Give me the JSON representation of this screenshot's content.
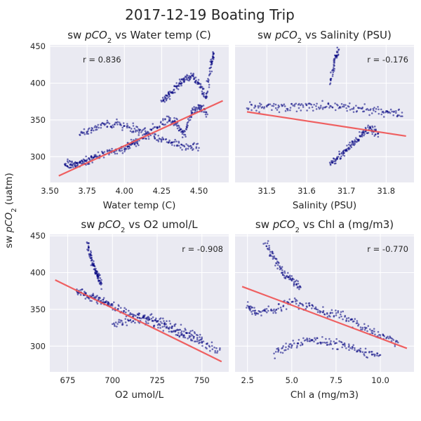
{
  "suptitle": "2017-12-19 Boating Trip",
  "ylabel_prefix": "sw ",
  "ylabel_var": "pCO",
  "ylabel_sub": "2",
  "ylabel_unit": " (uatm)",
  "chart_data": [
    {
      "type": "scatter",
      "title_prefix": "sw ",
      "title_var": "pCO",
      "title_sub": "2",
      "title_suffix": " vs Water temp (C)",
      "xlabel": "Water temp (C)",
      "xlim": [
        3.5,
        4.7
      ],
      "ylim": [
        265,
        452
      ],
      "xticks": [
        3.5,
        3.75,
        4.0,
        4.25,
        4.5
      ],
      "xtick_labels": [
        "3.50",
        "3.75",
        "4.00",
        "4.25",
        "4.50"
      ],
      "yticks": [
        300,
        350,
        400,
        450
      ],
      "ytick_labels": [
        "300",
        "350",
        "400",
        "450"
      ],
      "r_label": "r = 0.836",
      "r_position": "top-left",
      "fit_line": {
        "x": [
          3.56,
          4.66
        ],
        "y": [
          274,
          376
        ]
      },
      "point_color": "#000080",
      "fit_color": "#f05050",
      "series": [
        {
          "x": [
            3.6,
            3.65,
            3.7,
            3.75,
            3.8,
            3.9,
            4.0,
            4.05,
            4.1,
            4.2,
            4.3,
            4.35,
            4.4,
            4.45,
            4.5,
            4.55
          ],
          "y": [
            290,
            288,
            292,
            296,
            300,
            305,
            310,
            318,
            322,
            340,
            350,
            345,
            330,
            360,
            370,
            360
          ]
        },
        {
          "x": [
            3.7,
            3.8,
            3.9,
            4.0,
            4.1,
            4.2,
            4.3,
            4.4,
            4.5
          ],
          "y": [
            330,
            340,
            345,
            342,
            335,
            328,
            320,
            315,
            312
          ]
        },
        {
          "x": [
            4.25,
            4.3,
            4.35,
            4.4,
            4.45,
            4.5,
            4.55,
            4.58,
            4.6
          ],
          "y": [
            375,
            385,
            395,
            405,
            410,
            400,
            380,
            425,
            440
          ]
        }
      ]
    },
    {
      "type": "scatter",
      "title_prefix": "sw ",
      "title_var": "pCO",
      "title_sub": "2",
      "title_suffix": " vs Salinity (PSU)",
      "xlabel": "Salinity (PSU)",
      "xlim": [
        31.42,
        31.87
      ],
      "ylim": [
        265,
        452
      ],
      "xticks": [
        31.5,
        31.6,
        31.7,
        31.8
      ],
      "xtick_labels": [
        "31.5",
        "31.6",
        "31.7",
        "31.8"
      ],
      "yticks": [
        300,
        350,
        400,
        450
      ],
      "ytick_labels": [
        "",
        "",
        "",
        ""
      ],
      "r_label": "r = -0.176",
      "r_position": "top-right",
      "fit_line": {
        "x": [
          31.45,
          31.85
        ],
        "y": [
          361,
          328
        ]
      },
      "point_color": "#000080",
      "fit_color": "#f05050",
      "series": [
        {
          "x": [
            31.45,
            31.5,
            31.55,
            31.6,
            31.65,
            31.7,
            31.75,
            31.8,
            31.84
          ],
          "y": [
            366,
            368,
            365,
            370,
            368,
            366,
            364,
            362,
            360
          ]
        },
        {
          "x": [
            31.66,
            31.68,
            31.7,
            31.72,
            31.74,
            31.76,
            31.78
          ],
          "y": [
            290,
            300,
            310,
            320,
            330,
            340,
            332
          ]
        },
        {
          "x": [
            31.66,
            31.67,
            31.68
          ],
          "y": [
            400,
            430,
            445
          ]
        }
      ]
    },
    {
      "type": "scatter",
      "title_prefix": "sw ",
      "title_var": "pCO",
      "title_sub": "2",
      "title_suffix": " vs O2 umol/L",
      "xlabel": "O2 umol/L",
      "xlim": [
        665,
        765
      ],
      "ylim": [
        265,
        452
      ],
      "xticks": [
        675,
        700,
        725,
        750
      ],
      "xtick_labels": [
        "675",
        "700",
        "725",
        "750"
      ],
      "yticks": [
        300,
        350,
        400,
        450
      ],
      "ytick_labels": [
        "300",
        "350",
        "400",
        "450"
      ],
      "r_label": "r = -0.908",
      "r_position": "top-right",
      "fit_line": {
        "x": [
          668,
          761
        ],
        "y": [
          390,
          279
        ]
      },
      "point_color": "#000080",
      "fit_color": "#f05050",
      "series": [
        {
          "x": [
            680,
            685,
            690,
            695,
            700,
            710,
            720,
            730,
            740,
            750,
            760
          ],
          "y": [
            375,
            370,
            365,
            360,
            355,
            345,
            335,
            325,
            315,
            305,
            295
          ]
        },
        {
          "x": [
            686,
            688,
            690,
            692,
            694
          ],
          "y": [
            440,
            420,
            405,
            395,
            385
          ]
        },
        {
          "x": [
            700,
            710,
            720,
            730,
            740,
            750
          ],
          "y": [
            330,
            335,
            340,
            330,
            320,
            310
          ]
        }
      ]
    },
    {
      "type": "scatter",
      "title_prefix": "sw ",
      "title_var": "pCO",
      "title_sub": "2",
      "title_suffix": " vs Chl a (mg/m3)",
      "xlabel": "Chl a (mg/m3)",
      "xlim": [
        1.8,
        11.9
      ],
      "ylim": [
        265,
        452
      ],
      "xticks": [
        2.5,
        5.0,
        7.5,
        10.0
      ],
      "xtick_labels": [
        "2.5",
        "5.0",
        "7.5",
        "10.0"
      ],
      "yticks": [
        300,
        350,
        400,
        450
      ],
      "ytick_labels": [
        "",
        "",
        "",
        ""
      ],
      "r_label": "r = -0.770",
      "r_position": "top-right",
      "fit_line": {
        "x": [
          2.2,
          11.5
        ],
        "y": [
          381,
          297
        ]
      },
      "point_color": "#000080",
      "fit_color": "#f05050",
      "series": [
        {
          "x": [
            2.5,
            3.0,
            4.0,
            5.0,
            6.0,
            7.0,
            8.0,
            9.0,
            10.0,
            11.0
          ],
          "y": [
            355,
            345,
            350,
            360,
            355,
            345,
            340,
            325,
            315,
            305
          ]
        },
        {
          "x": [
            3.5,
            4.0,
            4.5,
            5.0,
            5.5
          ],
          "y": [
            440,
            420,
            400,
            390,
            380
          ]
        },
        {
          "x": [
            4.0,
            5.0,
            6.0,
            7.0,
            8.0,
            9.0,
            10.0
          ],
          "y": [
            290,
            300,
            310,
            305,
            300,
            292,
            288
          ]
        }
      ]
    }
  ]
}
